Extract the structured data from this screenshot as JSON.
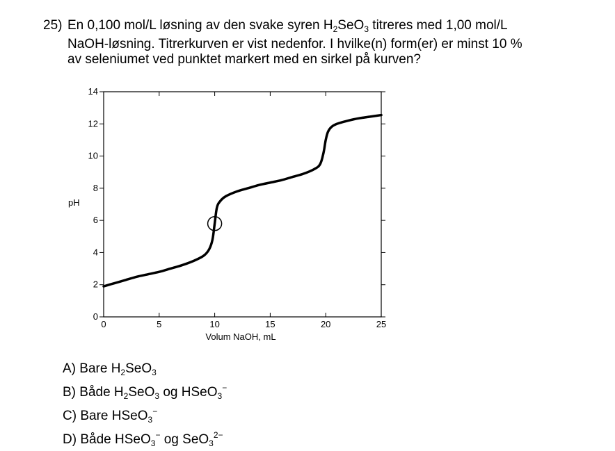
{
  "question": {
    "number": "25)",
    "line1": {
      "pre": "En 0,100 mol/L løsning av den svake syren H",
      "sub1": "2",
      "mid": "SeO",
      "sub2": "3",
      "post": " titreres med 1,00 mol/L"
    },
    "line2": "NaOH-løsning. Titrerkurven er vist nedenfor. I hvilke(n) form(er) er minst 10 %",
    "line3": "av seleniumet ved punktet markert med en sirkel på kurven?"
  },
  "options": {
    "A": {
      "label": "A)",
      "text1": "Bare H",
      "s1": "2",
      "text2": "SeO",
      "s2": "3"
    },
    "B": {
      "label": "B)",
      "text1": "Både H",
      "s1": "2",
      "text2": "SeO",
      "s2": "3",
      "text3": " og HSeO",
      "s3": "3",
      "c3": "−"
    },
    "C": {
      "label": "C)",
      "text1": "Bare HSeO",
      "s1": "3",
      "c1": "−"
    },
    "D": {
      "label": "D)",
      "text1": "Både HSeO",
      "s1": "3",
      "c1": "−",
      "text2": " og SeO",
      "s2": "3",
      "c2": "2−"
    }
  },
  "chart_data": {
    "type": "line",
    "xlabel": "Volum  NaOH, mL",
    "ylabel": "pH",
    "xlim": [
      0,
      25
    ],
    "ylim": [
      0,
      14
    ],
    "x_ticks": [
      0,
      5,
      10,
      15,
      20,
      25
    ],
    "y_ticks": [
      0,
      2,
      4,
      6,
      8,
      10,
      12,
      14
    ],
    "series": [
      {
        "x": [
          0,
          1,
          2,
          3,
          4,
          5,
          6,
          7,
          8,
          9,
          9.5,
          9.8,
          10,
          10.2,
          10.5,
          11,
          12,
          13,
          14,
          15,
          16,
          17,
          18,
          19,
          19.5,
          19.8,
          20,
          20.2,
          20.5,
          21,
          22,
          23,
          24,
          25
        ],
        "y": [
          1.9,
          2.1,
          2.3,
          2.5,
          2.65,
          2.8,
          3.0,
          3.2,
          3.45,
          3.8,
          4.2,
          4.8,
          5.8,
          6.8,
          7.2,
          7.5,
          7.8,
          8.0,
          8.2,
          8.35,
          8.5,
          8.7,
          8.9,
          9.2,
          9.5,
          10.2,
          11.0,
          11.5,
          11.8,
          12.0,
          12.2,
          12.35,
          12.45,
          12.55
        ]
      }
    ],
    "marked_point": {
      "x": 10,
      "y": 5.8,
      "marker": "circle"
    },
    "grid": false
  }
}
